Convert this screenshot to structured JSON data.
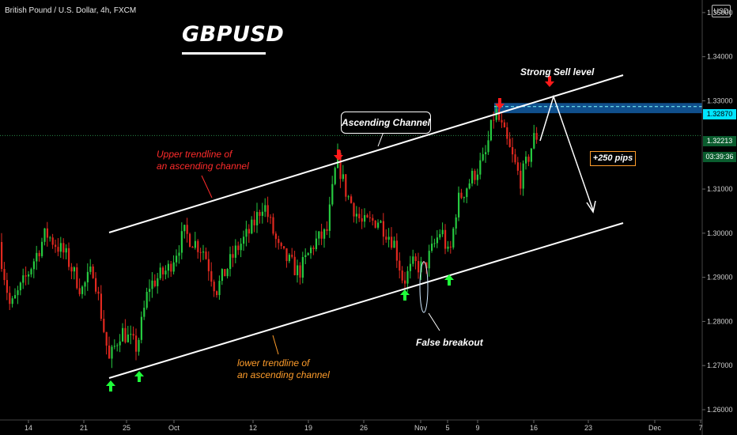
{
  "header": {
    "symbol_text": "British Pound / U.S. Dollar, 4h, FXCM",
    "title": "GBPUSD",
    "currency": "USD"
  },
  "annotations": {
    "upper_trendline": [
      "Upper trendline of",
      "an ascending channel"
    ],
    "lower_trendline": [
      "lower trendline of",
      "an ascending channel"
    ],
    "ascending_channel": "Ascending Channel",
    "strong_sell": "Strong Sell level",
    "pips": "+250 pips",
    "false_breakout": "False breakout"
  },
  "price_tags": {
    "sell_level": "1.32870",
    "current": "1.32213",
    "timer": "03:39:36"
  },
  "colors": {
    "bull": "#26c940",
    "bear": "#e0281f",
    "arrow_up": "#1fff3a",
    "arrow_down": "#ff1a1a",
    "zone": "#1e90ff"
  },
  "chart_data": {
    "type": "candlestick",
    "ylim": [
      1.26,
      1.355
    ],
    "y_ticks": [
      "1.26000",
      "1.27000",
      "1.28000",
      "1.29000",
      "1.30000",
      "1.31000",
      "1.33000",
      "1.34000",
      "1.35000"
    ],
    "x_ticks": [
      "14",
      "21",
      "25",
      "Oct",
      "12",
      "19",
      "26",
      "Nov",
      "5",
      "9",
      "16",
      "23",
      "Dec",
      "7"
    ],
    "anchors": [
      [
        0,
        1.298
      ],
      [
        15,
        1.283
      ],
      [
        35,
        1.29
      ],
      [
        60,
        1.3
      ],
      [
        85,
        1.295
      ],
      [
        105,
        1.287
      ],
      [
        120,
        1.292
      ],
      [
        140,
        1.271
      ],
      [
        155,
        1.278
      ],
      [
        175,
        1.274
      ],
      [
        190,
        1.288
      ],
      [
        215,
        1.292
      ],
      [
        235,
        1.3
      ],
      [
        260,
        1.296
      ],
      [
        275,
        1.287
      ],
      [
        300,
        1.296
      ],
      [
        320,
        1.301
      ],
      [
        335,
        1.307
      ],
      [
        355,
        1.296
      ],
      [
        380,
        1.291
      ],
      [
        400,
        1.298
      ],
      [
        415,
        1.3
      ],
      [
        428,
        1.317
      ],
      [
        440,
        1.309
      ],
      [
        460,
        1.302
      ],
      [
        480,
        1.303
      ],
      [
        500,
        1.298
      ],
      [
        512,
        1.289
      ],
      [
        525,
        1.293
      ],
      [
        538,
        1.292
      ],
      [
        560,
        1.301
      ],
      [
        570,
        1.294
      ],
      [
        580,
        1.307
      ],
      [
        600,
        1.313
      ],
      [
        615,
        1.317
      ],
      [
        628,
        1.328
      ],
      [
        640,
        1.322
      ],
      [
        652,
        1.316
      ],
      [
        660,
        1.312
      ],
      [
        668,
        1.316
      ],
      [
        678,
        1.322
      ]
    ]
  }
}
